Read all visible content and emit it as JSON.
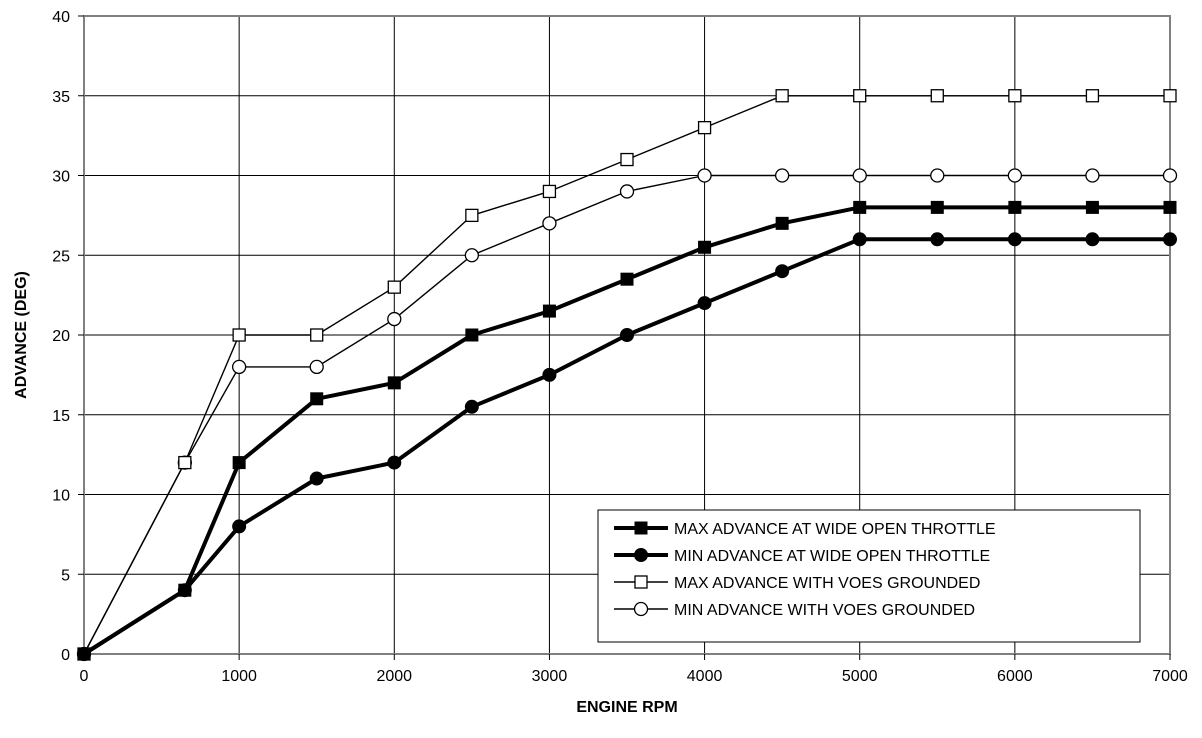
{
  "chart_data": {
    "type": "line",
    "title": "",
    "xlabel": "ENGINE RPM",
    "ylabel": "ADVANCE (DEG)",
    "xlim": [
      0,
      7000
    ],
    "ylim": [
      0,
      40
    ],
    "xticks": [
      0,
      1000,
      2000,
      3000,
      4000,
      5000,
      6000,
      7000
    ],
    "yticks": [
      0,
      5,
      10,
      15,
      20,
      25,
      30,
      35,
      40
    ],
    "grid": true,
    "legend_position": "bottom-right",
    "series": [
      {
        "name": "MAX ADVANCE AT WIDE OPEN THROTTLE",
        "marker": "square-filled",
        "line": "thick",
        "x": [
          0,
          650,
          1000,
          1500,
          2000,
          2500,
          3000,
          3500,
          4000,
          4500,
          5000,
          5500,
          6000,
          6500,
          7000
        ],
        "y": [
          0,
          4,
          12,
          16,
          17,
          20,
          21.5,
          23.5,
          25.5,
          27,
          28,
          28,
          28,
          28,
          28
        ]
      },
      {
        "name": "MIN ADVANCE AT WIDE OPEN THROTTLE",
        "marker": "circle-filled",
        "line": "thick",
        "x": [
          0,
          650,
          1000,
          1500,
          2000,
          2500,
          3000,
          3500,
          4000,
          4500,
          5000,
          5500,
          6000,
          6500,
          7000
        ],
        "y": [
          0,
          4,
          8,
          11,
          12,
          15.5,
          17.5,
          20,
          22,
          24,
          26,
          26,
          26,
          26,
          26
        ]
      },
      {
        "name": "MAX ADVANCE WITH VOES GROUNDED",
        "marker": "square-open",
        "line": "thin",
        "x": [
          0,
          650,
          1000,
          1500,
          2000,
          2500,
          3000,
          3500,
          4000,
          4500,
          5000,
          5500,
          6000,
          6500,
          7000
        ],
        "y": [
          0,
          12,
          20,
          20,
          23,
          27.5,
          29,
          31,
          33,
          35,
          35,
          35,
          35,
          35,
          35
        ]
      },
      {
        "name": "MIN ADVANCE WITH VOES GROUNDED",
        "marker": "circle-open",
        "line": "thin",
        "x": [
          0,
          650,
          1000,
          1500,
          2000,
          2500,
          3000,
          3500,
          4000,
          4500,
          5000,
          5500,
          6000,
          6500,
          7000
        ],
        "y": [
          0,
          12,
          18,
          18,
          21,
          25,
          27,
          29,
          30,
          30,
          30,
          30,
          30,
          30,
          30
        ]
      }
    ]
  }
}
